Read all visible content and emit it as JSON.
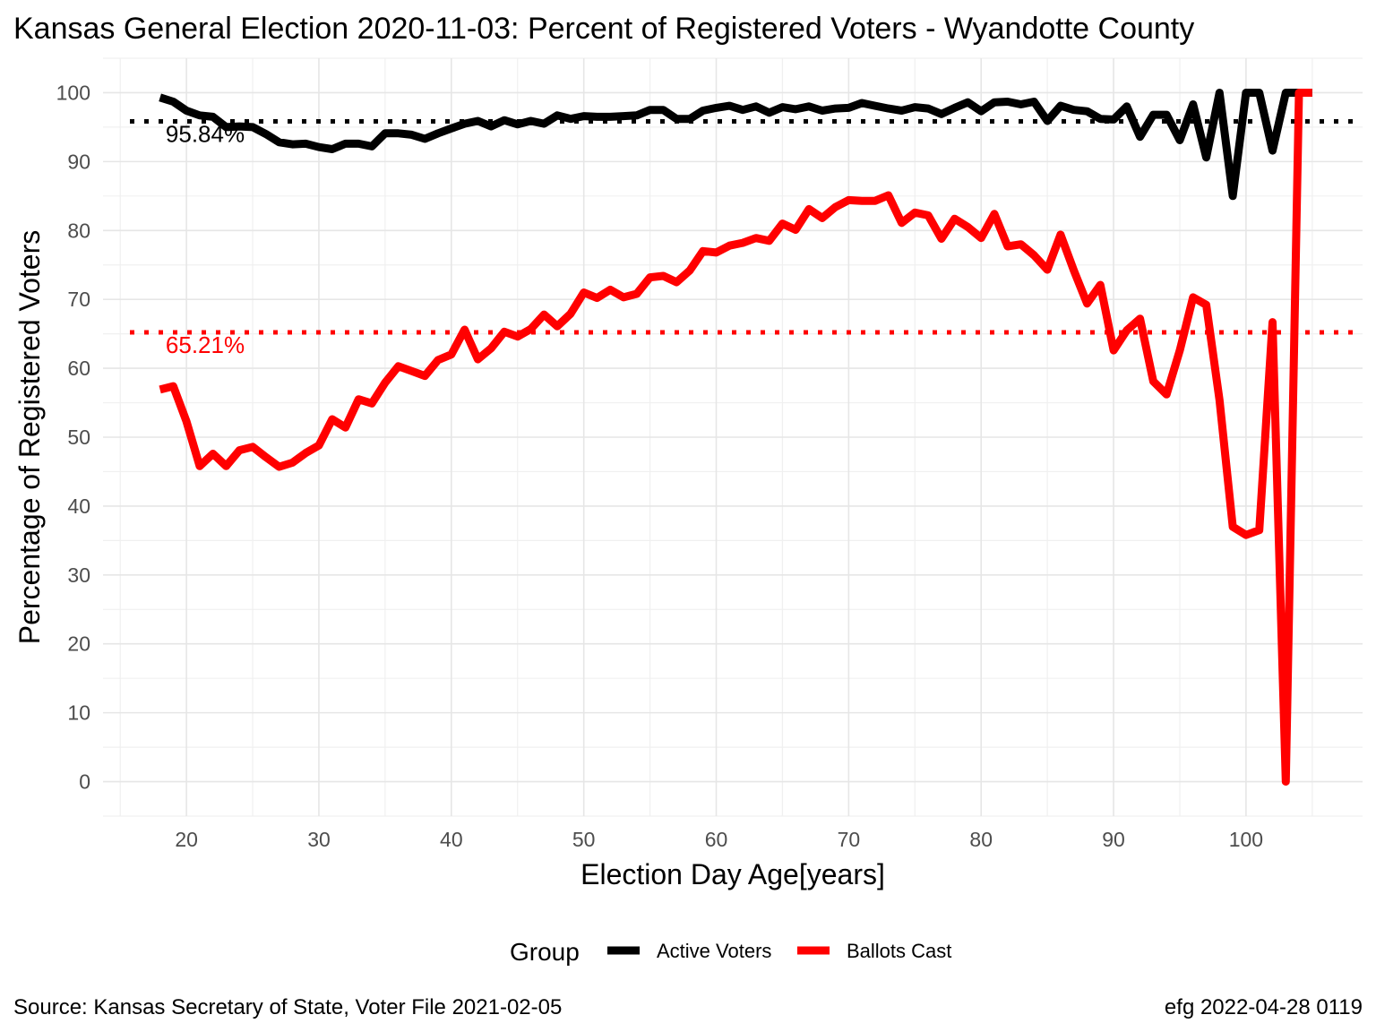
{
  "title": "Kansas General Election 2020-11-03:  Percent of Registered Voters - Wyandotte County",
  "caption_left": "Source:  Kansas Secretary of State, Voter File  2021-02-05",
  "caption_right": "efg 2022-04-28 0119",
  "legend_title": "Group",
  "chart_data": {
    "type": "line",
    "title": "Kansas General Election 2020-11-03:  Percent of Registered Voters - Wyandotte County",
    "xlabel": "Election Day Age[years]",
    "ylabel": "Percentage of Registered Voters",
    "xlim": [
      13.7,
      108.8
    ],
    "ylim": [
      -5,
      105
    ],
    "xticks": [
      20,
      30,
      40,
      50,
      60,
      70,
      80,
      90,
      100
    ],
    "yticks": [
      0,
      10,
      20,
      30,
      40,
      50,
      60,
      70,
      80,
      90,
      100
    ],
    "grid": true,
    "legend_position": "bottom",
    "reference_lines": [
      {
        "series": "Active Voters",
        "value": 95.84,
        "label": "95.84%",
        "color": "#000000"
      },
      {
        "series": "Ballots Cast",
        "value": 65.21,
        "label": "65.21%",
        "color": "#ff0000"
      }
    ],
    "x": [
      18,
      19,
      20,
      21,
      22,
      23,
      24,
      25,
      26,
      27,
      28,
      29,
      30,
      31,
      32,
      33,
      34,
      35,
      36,
      37,
      38,
      39,
      40,
      41,
      42,
      43,
      44,
      45,
      46,
      47,
      48,
      49,
      50,
      51,
      52,
      53,
      54,
      55,
      56,
      57,
      58,
      59,
      60,
      61,
      62,
      63,
      64,
      65,
      66,
      67,
      68,
      69,
      70,
      71,
      72,
      73,
      74,
      75,
      76,
      77,
      78,
      79,
      80,
      81,
      82,
      83,
      84,
      85,
      86,
      87,
      88,
      89,
      90,
      91,
      92,
      93,
      94,
      95,
      96,
      97,
      98,
      99,
      100,
      101,
      102,
      103,
      104,
      105
    ],
    "series": [
      {
        "name": "Active Voters",
        "color": "#000000",
        "values": [
          99.3,
          98.7,
          97.4,
          96.7,
          96.5,
          95.0,
          95.1,
          95.0,
          94.0,
          92.8,
          92.5,
          92.6,
          92.1,
          91.8,
          92.6,
          92.6,
          92.2,
          94.1,
          94.1,
          93.9,
          93.3,
          94.1,
          94.8,
          95.5,
          95.9,
          95.1,
          96.0,
          95.4,
          95.9,
          95.5,
          96.7,
          96.2,
          96.6,
          96.5,
          96.5,
          96.6,
          96.7,
          97.5,
          97.5,
          96.2,
          96.2,
          97.4,
          97.8,
          98.1,
          97.5,
          98.0,
          97.1,
          97.9,
          97.6,
          98.0,
          97.4,
          97.7,
          97.8,
          98.5,
          98.1,
          97.7,
          97.4,
          97.9,
          97.7,
          96.9,
          97.8,
          98.6,
          97.3,
          98.6,
          98.7,
          98.3,
          98.7,
          95.9,
          98.1,
          97.5,
          97.3,
          96.2,
          96.1,
          98.0,
          93.6,
          96.8,
          96.8,
          93.1,
          98.3,
          90.6,
          100,
          85.0,
          100,
          100,
          91.6,
          100,
          100,
          100
        ]
      },
      {
        "name": "Ballots Cast",
        "color": "#ff0000",
        "values": [
          56.9,
          57.4,
          52.3,
          45.8,
          47.6,
          45.8,
          48.1,
          48.6,
          47.1,
          45.7,
          46.3,
          47.7,
          48.8,
          52.6,
          51.4,
          55.5,
          54.9,
          57.9,
          60.3,
          59.6,
          58.9,
          61.2,
          62.0,
          65.6,
          61.3,
          62.9,
          65.3,
          64.6,
          65.7,
          67.8,
          66.1,
          67.9,
          71.0,
          70.2,
          71.4,
          70.3,
          70.8,
          73.2,
          73.4,
          72.5,
          74.2,
          77.0,
          76.8,
          77.8,
          78.2,
          78.9,
          78.5,
          81.0,
          80.1,
          83.1,
          81.8,
          83.4,
          84.4,
          84.3,
          84.3,
          85.1,
          81.1,
          82.6,
          82.2,
          78.8,
          81.7,
          80.5,
          78.9,
          82.4,
          77.7,
          78.0,
          76.4,
          74.3,
          79.4,
          74.2,
          69.4,
          72.1,
          62.6,
          65.5,
          67.2,
          58.1,
          56.2,
          62.6,
          70.3,
          69.2,
          55.4,
          37.0,
          35.8,
          36.5,
          66.7,
          0,
          100,
          100
        ]
      }
    ]
  }
}
